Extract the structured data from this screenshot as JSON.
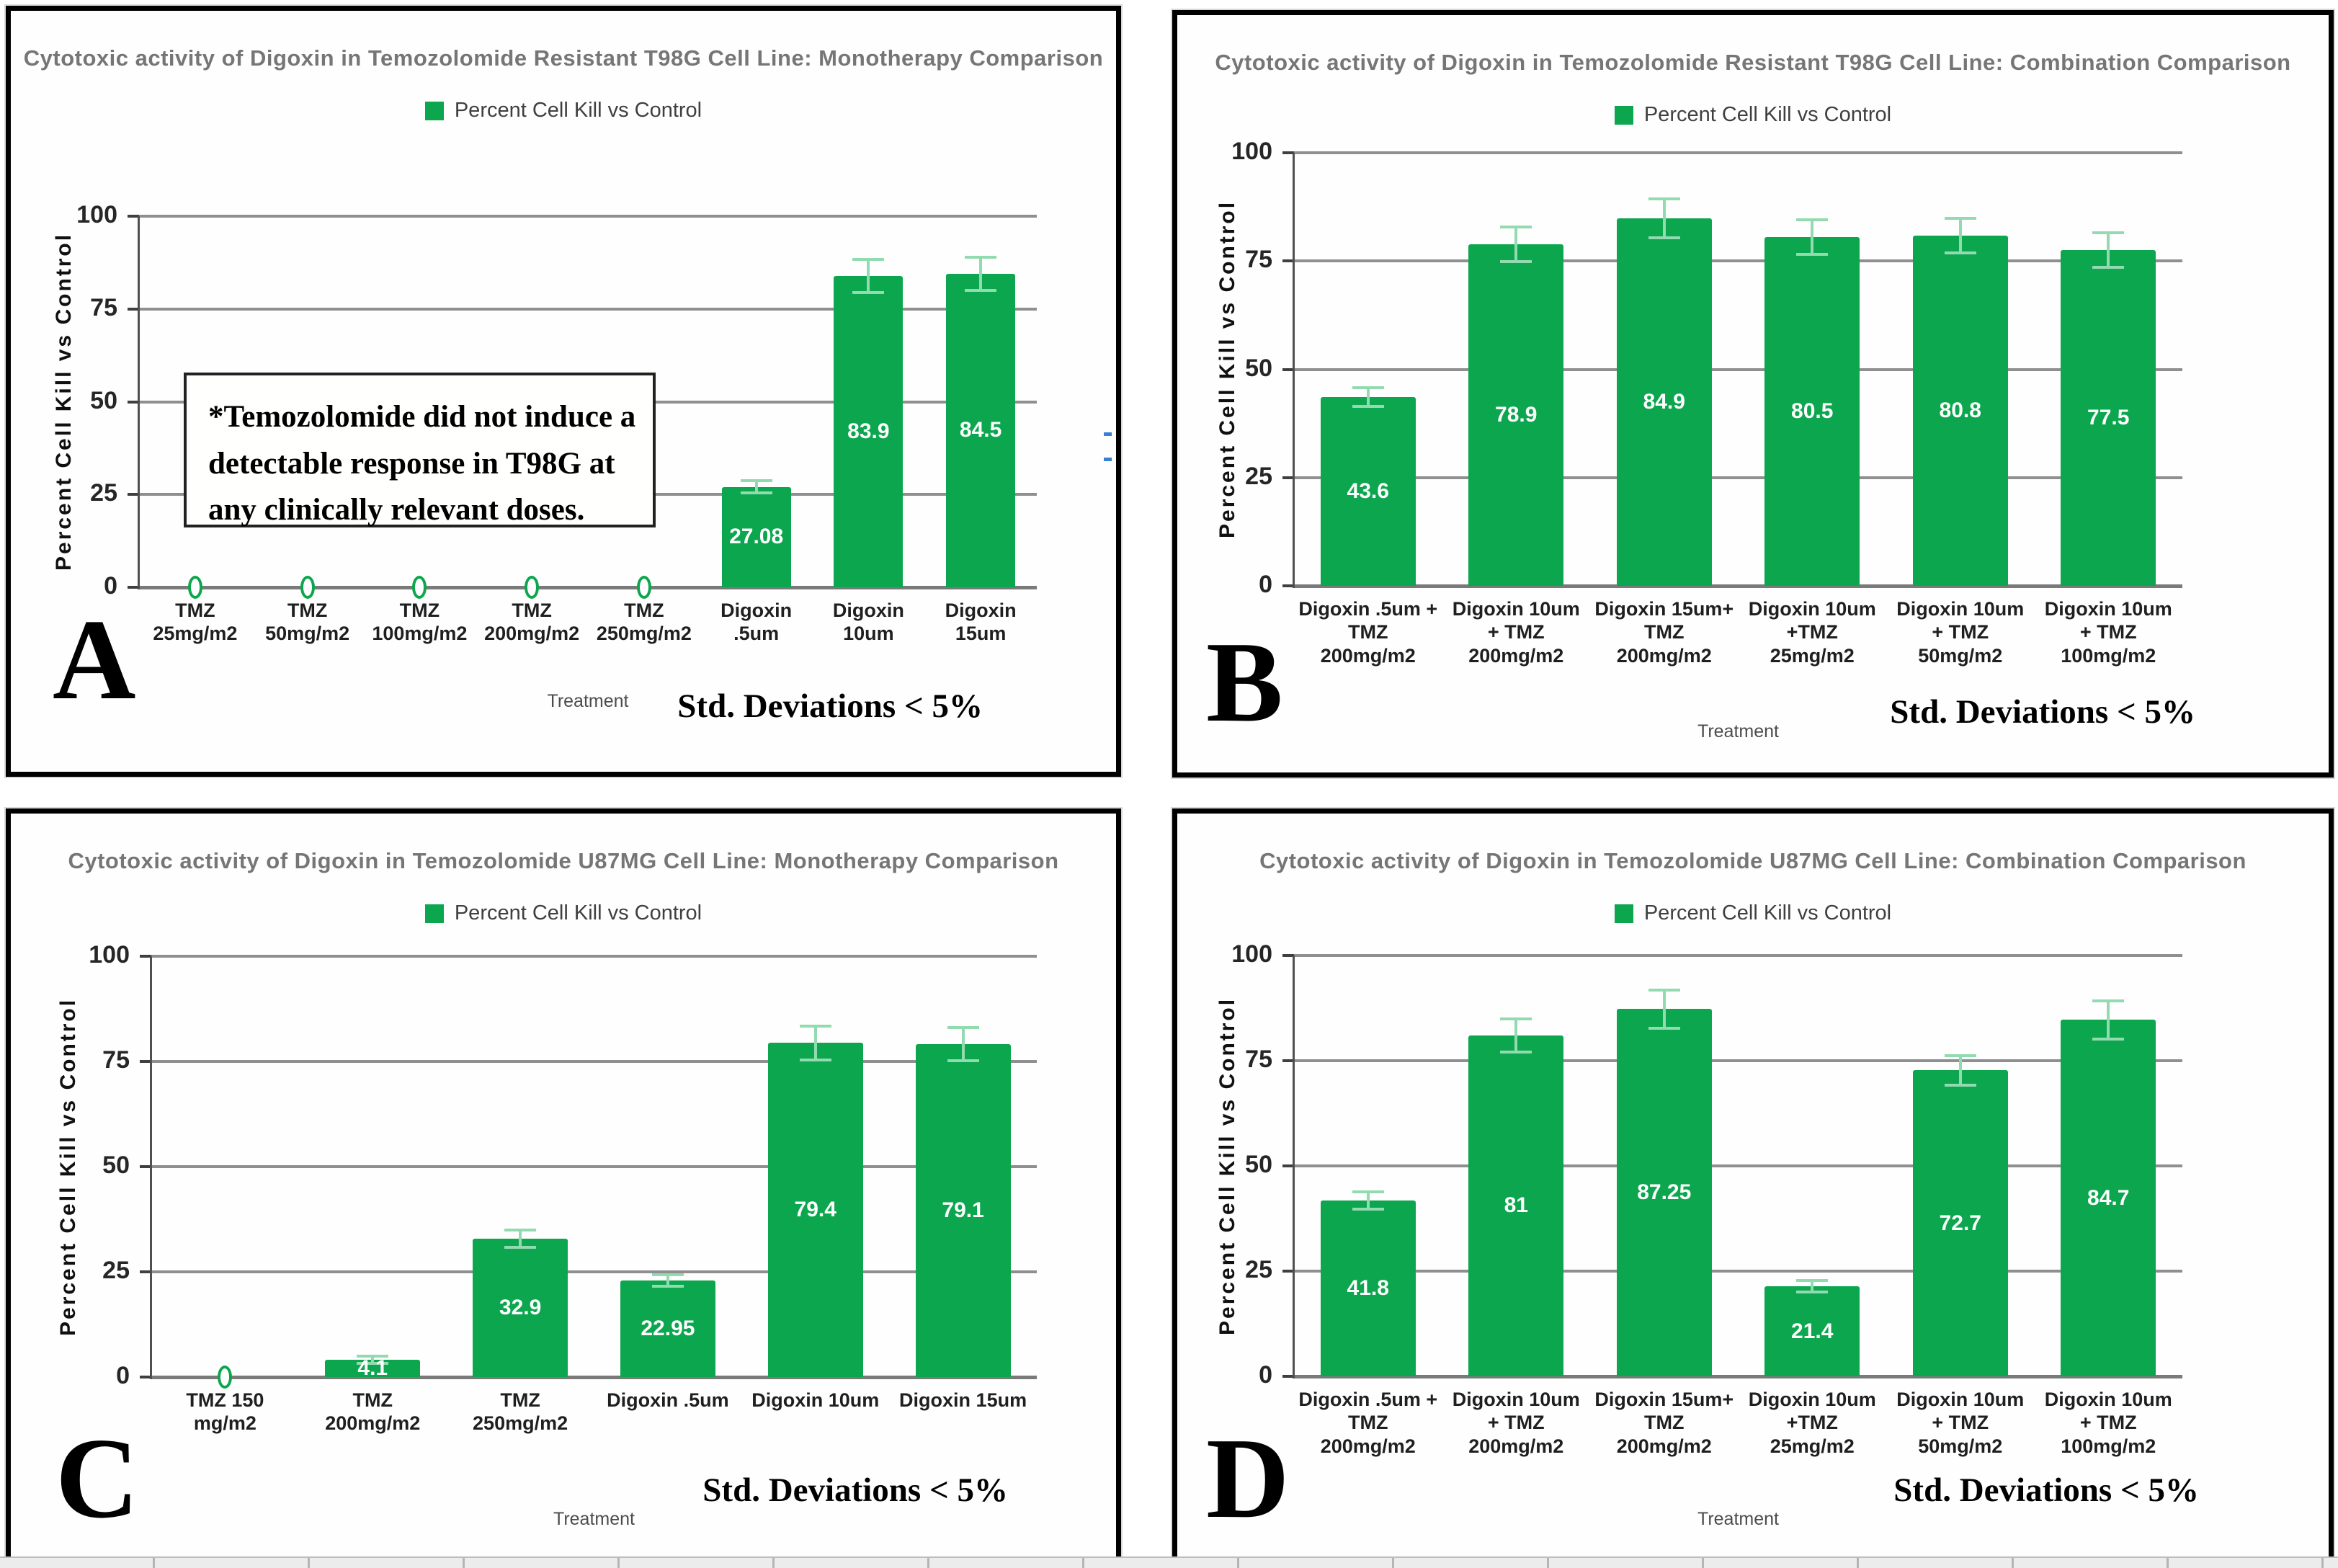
{
  "figure": {
    "colors": {
      "bar_green": "#0ca64e",
      "error_bar_green": "#92dbb1",
      "gridline_gray": "#8f8f8f",
      "title_gray": "#767676"
    }
  },
  "chart_data": [
    {
      "panel_letter": "A",
      "type": "bar",
      "title": "Cytotoxic activity of Digoxin in Temozolomide Resistant T98G Cell Line: Monotherapy Comparison",
      "legend": "Percent Cell Kill vs Control",
      "xlabel": "Treatment",
      "ylabel": "Percent Cell Kill vs Control",
      "ylim": [
        0,
        100
      ],
      "yticks": [
        0,
        25,
        50,
        75,
        100
      ],
      "grid": true,
      "legend_position": "top-center",
      "categories": [
        "TMZ\n25mg/m2",
        "TMZ\n50mg/m2",
        "TMZ\n100mg/m2",
        "TMZ\n200mg/m2",
        "TMZ\n250mg/m2",
        "Digoxin\n.5um",
        "Digoxin\n10um",
        "Digoxin\n15um"
      ],
      "values": [
        0,
        0,
        0,
        0,
        0,
        27.08,
        83.9,
        84.5
      ],
      "errors": [
        0,
        0,
        0,
        0,
        0,
        1.6,
        4.5,
        4.5
      ],
      "bar_labels": [
        "0",
        "0",
        "0",
        "0",
        "0",
        "27.08",
        "83.9",
        "84.5"
      ],
      "note": "*Temozolomide did not induce a detectable response in T98G at any clinically relevant doses.",
      "footnote": "Std. Deviations < 5%"
    },
    {
      "panel_letter": "B",
      "type": "bar",
      "title": "Cytotoxic activity of Digoxin in Temozolomide Resistant T98G Cell Line: Combination Comparison",
      "legend": "Percent Cell Kill vs Control",
      "xlabel": "Treatment",
      "ylabel": "Percent Cell Kill vs Control",
      "ylim": [
        0,
        100
      ],
      "yticks": [
        0,
        25,
        50,
        75,
        100
      ],
      "grid": true,
      "legend_position": "top-center",
      "categories": [
        "Digoxin .5um +\nTMZ\n200mg/m2",
        "Digoxin 10um\n+ TMZ\n200mg/m2",
        "Digoxin 15um+\nTMZ\n200mg/m2",
        "Digoxin 10um\n+TMZ\n25mg/m2",
        "Digoxin 10um\n+ TMZ\n50mg/m2",
        "Digoxin 10um\n+ TMZ\n100mg/m2"
      ],
      "values": [
        43.6,
        78.9,
        84.9,
        80.5,
        80.8,
        77.5
      ],
      "errors": [
        2.2,
        4,
        4.5,
        4,
        4,
        4
      ],
      "bar_labels": [
        "43.6",
        "78.9",
        "84.9",
        "80.5",
        "80.8",
        "77.5"
      ],
      "note": "",
      "footnote": "Std. Deviations < 5%"
    },
    {
      "panel_letter": "C",
      "type": "bar",
      "title": "Cytotoxic activity of Digoxin in Temozolomide U87MG Cell Line: Monotherapy Comparison",
      "legend": "Percent Cell Kill vs Control",
      "xlabel": "Treatment",
      "ylabel": "Percent Cell Kill vs Control",
      "ylim": [
        0,
        100
      ],
      "yticks": [
        0,
        25,
        50,
        75,
        100
      ],
      "grid": true,
      "legend_position": "top-center",
      "categories": [
        "TMZ 150\nmg/m2",
        "TMZ\n200mg/m2",
        "TMZ\n250mg/m2",
        "Digoxin .5um",
        "Digoxin 10um",
        "Digoxin 15um"
      ],
      "values": [
        0,
        4.1,
        32.9,
        22.95,
        79.4,
        79.1
      ],
      "errors": [
        0,
        0.9,
        2,
        1.3,
        4,
        4
      ],
      "bar_labels": [
        "0",
        "4.1",
        "32.9",
        "22.95",
        "79.4",
        "79.1"
      ],
      "note": "",
      "footnote": "Std. Deviations < 5%"
    },
    {
      "panel_letter": "D",
      "type": "bar",
      "title": "Cytotoxic activity of Digoxin in Temozolomide U87MG Cell Line: Combination Comparison",
      "legend": "Percent Cell Kill vs Control",
      "xlabel": "Treatment",
      "ylabel": "Percent Cell Kill vs Control",
      "ylim": [
        0,
        100
      ],
      "yticks": [
        0,
        25,
        50,
        75,
        100
      ],
      "grid": true,
      "legend_position": "top-center",
      "categories": [
        "Digoxin .5um +\nTMZ\n200mg/m2",
        "Digoxin 10um\n+ TMZ\n200mg/m2",
        "Digoxin 15um+\nTMZ\n200mg/m2",
        "Digoxin 10um\n+TMZ\n25mg/m2",
        "Digoxin 10um\n+ TMZ\n50mg/m2",
        "Digoxin 10um\n+ TMZ\n100mg/m2"
      ],
      "values": [
        41.8,
        81,
        87.25,
        21.4,
        72.7,
        84.7
      ],
      "errors": [
        2,
        4,
        4.5,
        1.3,
        3.5,
        4.5
      ],
      "bar_labels": [
        "41.8",
        "81",
        "87.25",
        "21.4",
        "72.7",
        "84.7"
      ],
      "note": "",
      "footnote": "Std. Deviations < 5%"
    }
  ]
}
